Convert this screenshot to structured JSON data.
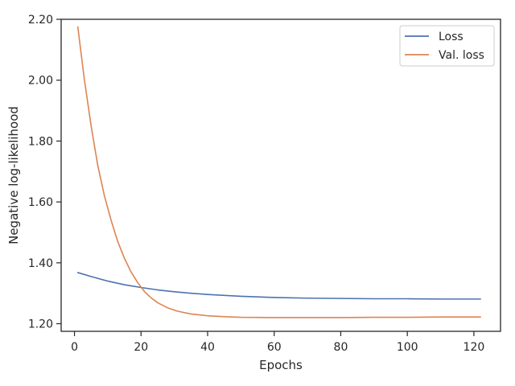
{
  "chart_data": {
    "type": "line",
    "title": "",
    "xlabel": "Epochs",
    "ylabel": "Negative log-likelihood",
    "xlim": [
      -4,
      128
    ],
    "ylim": [
      1.175,
      2.2
    ],
    "x_ticks": [
      0,
      20,
      40,
      60,
      80,
      100,
      120
    ],
    "x_tick_labels": [
      "0",
      "20",
      "40",
      "60",
      "80",
      "100",
      "120"
    ],
    "y_ticks": [
      1.2,
      1.4,
      1.6,
      1.8,
      2.0,
      2.2
    ],
    "y_tick_labels": [
      "1.20",
      "1.40",
      "1.60",
      "1.80",
      "2.00",
      "2.20"
    ],
    "grid": false,
    "legend_position": "top-right",
    "series": [
      {
        "name": "Loss",
        "color": "#4c72b0",
        "x": [
          1,
          5,
          10,
          15,
          20,
          25,
          30,
          35,
          40,
          50,
          60,
          70,
          80,
          90,
          100,
          110,
          122
        ],
        "y": [
          1.368,
          1.355,
          1.34,
          1.328,
          1.319,
          1.311,
          1.305,
          1.3,
          1.296,
          1.29,
          1.286,
          1.284,
          1.283,
          1.282,
          1.282,
          1.281,
          1.281
        ]
      },
      {
        "name": "Val. loss",
        "color": "#dd8452",
        "x": [
          1,
          3,
          5,
          7,
          9,
          11,
          13,
          15,
          17,
          19,
          21,
          23,
          25,
          28,
          31,
          35,
          40,
          45,
          50,
          60,
          70,
          80,
          90,
          100,
          110,
          122
        ],
        "y": [
          2.175,
          2.0,
          1.85,
          1.72,
          1.62,
          1.54,
          1.47,
          1.415,
          1.37,
          1.335,
          1.306,
          1.285,
          1.269,
          1.252,
          1.241,
          1.232,
          1.226,
          1.223,
          1.221,
          1.22,
          1.22,
          1.22,
          1.221,
          1.221,
          1.222,
          1.222
        ]
      }
    ]
  }
}
